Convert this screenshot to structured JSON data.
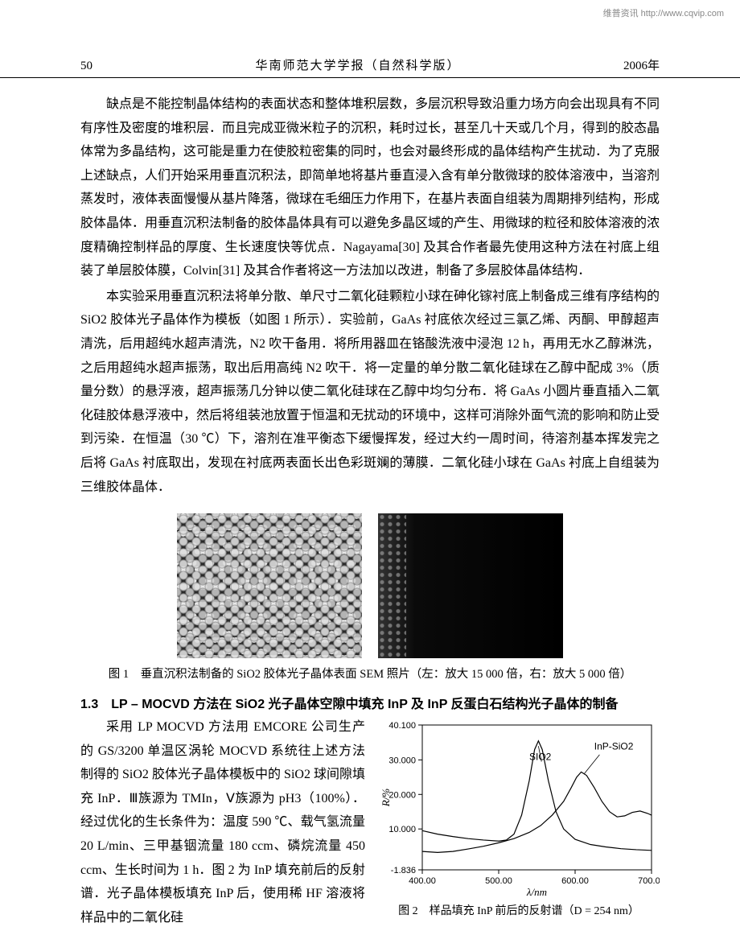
{
  "watermark": "维普资讯 http://www.cqvip.com",
  "header": {
    "page_number": "50",
    "journal": "华南师范大学学报（自然科学版）",
    "year": "2006年"
  },
  "para1": "缺点是不能控制晶体结构的表面状态和整体堆积层数，多层沉积导致沿重力场方向会出现具有不同有序性及密度的堆积层．而且完成亚微米粒子的沉积，耗时过长，甚至几十天或几个月，得到的胶态晶体常为多晶结构，这可能是重力在使胶粒密集的同时，也会对最终形成的晶体结构产生扰动．为了克服上述缺点，人们开始采用垂直沉积法，即简单地将基片垂直浸入含有单分散微球的胶体溶液中，当溶剂蒸发时，液体表面慢慢从基片降落，微球在毛细压力作用下，在基片表面自组装为周期排列结构，形成胶体晶体．用垂直沉积法制备的胶体晶体具有可以避免多晶区域的产生、用微球的粒径和胶体溶液的浓度精确控制样品的厚度、生长速度快等优点．Nagayama[30] 及其合作者最先使用这种方法在衬底上组装了单层胶体膜，Colvin[31] 及其合作者将这一方法加以改进，制备了多层胶体晶体结构．",
  "para2": "本实验采用垂直沉积法将单分散、单尺寸二氧化硅颗粒小球在砷化镓衬底上制备成三维有序结构的SiO2 胶体光子晶体作为模板（如图 1 所示）．实验前，GaAs 衬底依次经过三氯乙烯、丙酮、甲醇超声清洗，后用超纯水超声清洗，N2 吹干备用．将所用器皿在铬酸洗液中浸泡 12 h，再用无水乙醇淋洗，之后用超纯水超声振荡，取出后用高纯 N2 吹干．将一定量的单分散二氧化硅球在乙醇中配成 3%（质量分数）的悬浮液，超声振荡几分钟以使二氧化硅球在乙醇中均匀分布．将 GaAs 小圆片垂直插入二氧化硅胶体悬浮液中，然后将组装池放置于恒温和无扰动的环境中，这样可消除外面气流的影响和防止受到污染．在恒温（30 ℃）下，溶剂在准平衡态下缓慢挥发，经过大约一周时间，待溶剂基本挥发完之后将 GaAs 衬底取出，发现在衬底两表面长出色彩斑斓的薄膜．二氧化硅小球在 GaAs 衬底上自组装为三维胶体晶体．",
  "fig1_caption": "图 1　垂直沉积法制备的 SiO2 胶体光子晶体表面 SEM 照片（左：放大 15 000 倍，右：放大 5 000 倍）",
  "section_1_3": "1.3　LP – MOCVD 方法在 SiO2 光子晶体空隙中填充 InP 及 InP 反蛋白石结构光子晶体的制备",
  "para3": "采用 LP MOCVD 方法用 EMCORE 公司生产的 GS/3200 单温区涡轮 MOCVD 系统往上述方法制得的 SiO2 胶体光子晶体模板中的 SiO2 球间隙填充 InP．Ⅲ族源为 TMIn，Ⅴ族源为 pH3（100%）．经过优化的生长条件为：温度 590 ℃、载气氢流量 20 L/min、三甲基铟流量 180 ccm、磷烷流量 450 ccm、生长时间为 1 h．图 2 为 InP 填充前后的反射谱．光子晶体模板填充 InP 后，使用稀 HF 溶液将样品中的二氧化硅",
  "chart": {
    "type": "line",
    "xlabel": "λ/nm",
    "ylabel": "R/%",
    "xlim": [
      400,
      700
    ],
    "ylim": [
      -1.836,
      40.1
    ],
    "xticks": [
      400.0,
      500.0,
      600.0,
      700.0
    ],
    "yticks": [
      -1.836,
      10.0,
      20.0,
      30.0,
      40.1
    ],
    "ytick_labels": [
      "-1.836",
      "10.000",
      "20.000",
      "30.000",
      "40.100"
    ],
    "xtick_labels": [
      "400.00",
      "500.00",
      "600.00",
      "700.00"
    ],
    "series": [
      {
        "name": "SiO2",
        "label_text": "SIO2",
        "label_pos": [
          540,
          30
        ],
        "color": "#000000",
        "line_width": 1.2,
        "points": [
          [
            400,
            9.5
          ],
          [
            420,
            8.5
          ],
          [
            440,
            7.8
          ],
          [
            460,
            7.2
          ],
          [
            480,
            6.8
          ],
          [
            500,
            6.5
          ],
          [
            510,
            6.8
          ],
          [
            520,
            8.5
          ],
          [
            530,
            14
          ],
          [
            540,
            24
          ],
          [
            547,
            33
          ],
          [
            552,
            35.5
          ],
          [
            557,
            33
          ],
          [
            565,
            24
          ],
          [
            575,
            15
          ],
          [
            585,
            10
          ],
          [
            600,
            7
          ],
          [
            620,
            5.5
          ],
          [
            640,
            4.8
          ],
          [
            660,
            4.3
          ],
          [
            680,
            4
          ],
          [
            700,
            3.8
          ]
        ]
      },
      {
        "name": "InP-SiO2",
        "label_text": "InP-SiO2",
        "label_pos": [
          625,
          33
        ],
        "color": "#000000",
        "line_width": 1.2,
        "points": [
          [
            400,
            3.5
          ],
          [
            420,
            3.2
          ],
          [
            440,
            3.5
          ],
          [
            460,
            4.2
          ],
          [
            480,
            5
          ],
          [
            500,
            6
          ],
          [
            520,
            7.2
          ],
          [
            540,
            9
          ],
          [
            555,
            11
          ],
          [
            570,
            14
          ],
          [
            585,
            18
          ],
          [
            595,
            22
          ],
          [
            602,
            25
          ],
          [
            608,
            26.5
          ],
          [
            615,
            25.5
          ],
          [
            625,
            22
          ],
          [
            635,
            18
          ],
          [
            645,
            15
          ],
          [
            655,
            13.5
          ],
          [
            665,
            13.8
          ],
          [
            675,
            14.8
          ],
          [
            685,
            15.2
          ],
          [
            695,
            14.5
          ],
          [
            700,
            14
          ]
        ]
      }
    ],
    "pointer_lines": [
      {
        "from": [
          556,
          29.5
        ],
        "to": [
          552,
          34
        ]
      },
      {
        "from": [
          632,
          31.5
        ],
        "to": [
          612,
          26
        ]
      }
    ],
    "axis_color": "#000000",
    "background": "#ffffff",
    "tick_fontsize": 11
  },
  "fig2_caption": "图 2　样品填充 InP 前后的反射谱（D = 254 nm）"
}
